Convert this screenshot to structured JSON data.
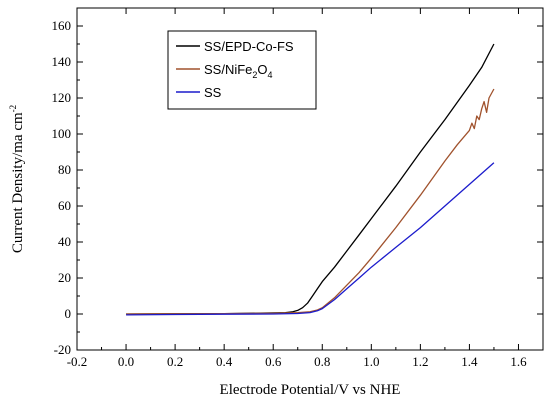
{
  "chart_data": {
    "type": "line",
    "xlabel": "Electrode Potential/V vs NHE",
    "ylabel_main": "Current Density/ma cm",
    "ylabel_sup": "-2",
    "xlim": [
      -0.2,
      1.7
    ],
    "ylim": [
      -20,
      170
    ],
    "x_ticks": [
      "-0.2",
      "0.0",
      "0.2",
      "0.4",
      "0.6",
      "0.8",
      "1.0",
      "1.2",
      "1.4",
      "1.6"
    ],
    "y_ticks": [
      "-20",
      "0",
      "20",
      "40",
      "60",
      "80",
      "100",
      "120",
      "140",
      "160"
    ],
    "legend_placement": "top-left",
    "legend": [
      {
        "prefix": "SS/EPD-Co-FS",
        "parts": []
      },
      {
        "prefix": "SS/NiFe",
        "parts": [
          {
            "t": "2",
            "s": "sub"
          },
          {
            "t": "O",
            "s": ""
          },
          {
            "t": "4",
            "s": "sub"
          }
        ]
      },
      {
        "prefix": "SS",
        "parts": []
      }
    ],
    "series": [
      {
        "name": "SS/EPD-Co-FS",
        "color": "#000000",
        "x": [
          0.0,
          0.2,
          0.4,
          0.5,
          0.6,
          0.65,
          0.68,
          0.7,
          0.72,
          0.74,
          0.76,
          0.78,
          0.8,
          0.85,
          0.9,
          0.95,
          1.0,
          1.1,
          1.2,
          1.3,
          1.4,
          1.45,
          1.5
        ],
        "y": [
          0.0,
          0.1,
          0.2,
          0.4,
          0.6,
          0.8,
          1.2,
          2.0,
          3.5,
          6.0,
          10.0,
          14.0,
          18.0,
          26.0,
          35.0,
          44.0,
          53.0,
          71.0,
          90.0,
          108.0,
          127.0,
          137.0,
          150.0
        ]
      },
      {
        "name": "SS/NiFe2O4",
        "color": "#a0522d",
        "x": [
          0.0,
          0.2,
          0.4,
          0.6,
          0.7,
          0.75,
          0.78,
          0.8,
          0.85,
          0.9,
          0.95,
          1.0,
          1.1,
          1.2,
          1.3,
          1.35,
          1.4,
          1.41,
          1.42,
          1.43,
          1.44,
          1.45,
          1.46,
          1.47,
          1.48,
          1.5
        ],
        "y": [
          0.0,
          0.1,
          0.2,
          0.4,
          0.7,
          1.2,
          2.2,
          3.5,
          9.0,
          16.0,
          23.0,
          31.0,
          48.0,
          66.0,
          85.0,
          94.0,
          102.0,
          106.0,
          103.0,
          110.0,
          108.0,
          114.0,
          118.0,
          112.0,
          120.0,
          125.0
        ]
      },
      {
        "name": "SS",
        "color": "#1c1ccc",
        "x": [
          0.0,
          0.2,
          0.4,
          0.6,
          0.7,
          0.75,
          0.78,
          0.8,
          0.85,
          0.9,
          0.95,
          1.0,
          1.1,
          1.2,
          1.3,
          1.4,
          1.5
        ],
        "y": [
          -0.5,
          -0.3,
          -0.1,
          0.0,
          0.3,
          0.8,
          1.8,
          3.0,
          8.0,
          14.0,
          20.0,
          26.0,
          37.0,
          48.0,
          60.0,
          72.0,
          84.0
        ]
      }
    ]
  }
}
